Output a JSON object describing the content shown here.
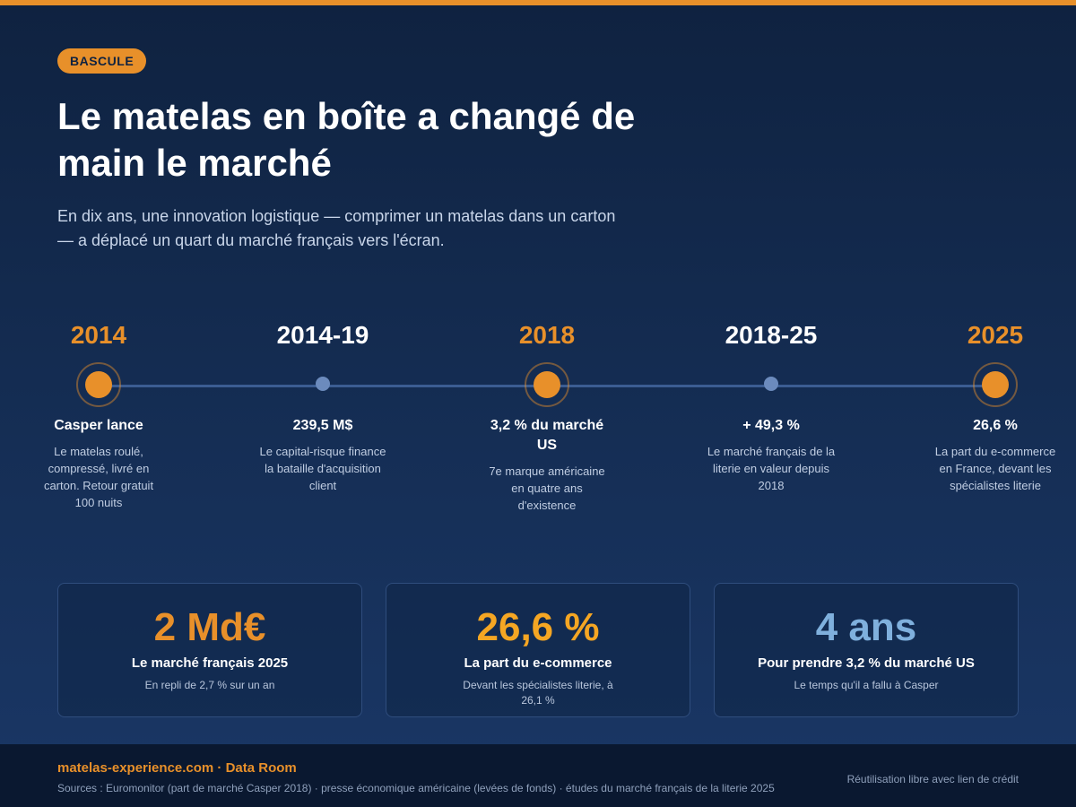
{
  "badge": "BASCULE",
  "title": "Le matelas en boîte a changé de main le marché",
  "subtitle": "En dix ans, une innovation logistique — comprimer un matelas dans un carton — a déplacé un quart du marché français vers l'écran.",
  "colors": {
    "accent": "#e8902a",
    "highlight": "#f5a623",
    "blue": "#7fb0dd",
    "background": "#152e55"
  },
  "timeline": [
    {
      "year": "2014",
      "headline": "Casper lance",
      "description": "Le matelas roulé, compressé, livré en carton. Retour gratuit 100 nuits"
    },
    {
      "year": "2014-19",
      "headline": "239,5 M$",
      "description": "Le capital-risque finance la bataille d'acquisition client"
    },
    {
      "year": "2018",
      "headline": "3,2 % du marché US",
      "description": "7e marque américaine en quatre ans d'existence"
    },
    {
      "year": "2018-25",
      "headline": "+ 49,3 %",
      "description": "Le marché français de la literie en valeur depuis 2018"
    },
    {
      "year": "2025",
      "headline": "26,6 %",
      "description": "La part du e-commerce en France, devant les spécialistes literie"
    }
  ],
  "stats": [
    {
      "value": "2 Md€",
      "label": "Le marché français 2025",
      "note": "En repli de 2,7 % sur un an"
    },
    {
      "value": "26,6 %",
      "label": "La part du e-commerce",
      "note": "Devant les spécialistes literie, à 26,1 %"
    },
    {
      "value": "4 ans",
      "label": "Pour prendre 3,2 % du marché US",
      "note": "Le temps qu'il a fallu à Casper"
    }
  ],
  "footer": {
    "brand": "matelas-experience.com · Data Room",
    "sources": "Sources : Euromonitor (part de marché Casper 2018) · presse économique américaine (levées de fonds) · études du marché français de la literie 2025",
    "license": "Réutilisation libre avec lien de crédit"
  }
}
